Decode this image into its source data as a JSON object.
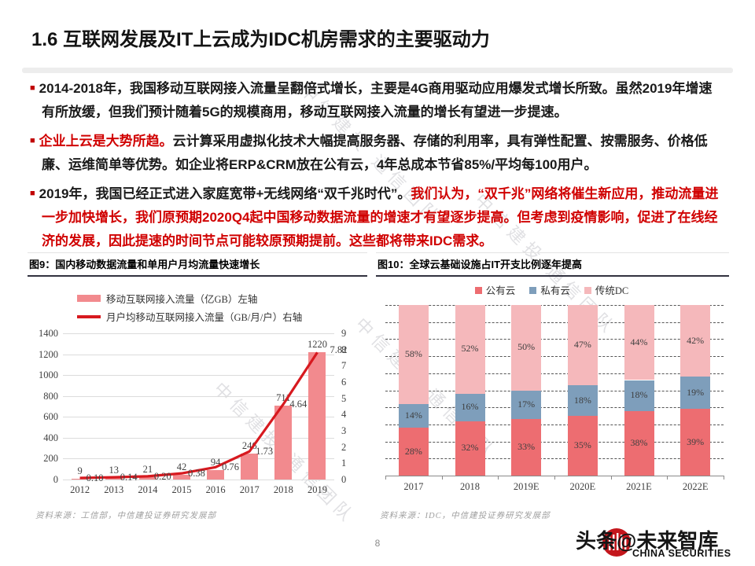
{
  "slide": {
    "title": "1.6 互联网发展及IT上云成为IDC机房需求的主要驱动力",
    "page_number": "8",
    "watermark": "中信建投 通信团队",
    "bullet_marker": "■"
  },
  "bullets": {
    "b1": {
      "text": "2014-2018年，我国移动互联网接入流量呈翻倍式增长，主要是4G商用驱动应用爆发式增长所致。虽然2019年增速有所放缓，但我们预计随着5G的规模商用，移动互联网接入流量的增长有望进一步提速。"
    },
    "b2": {
      "lead": "企业上云是大势所趋。",
      "body": "云计算采用虚拟化技术大幅提高服务器、存储的利用率，具有弹性配置、按需服务、价格低廉、运维简单等优势。如企业将ERP&CRM放在公有云，4年总成本节省85%/平均每100用户。"
    },
    "b3": {
      "lead": "2019年，我国已经正式进入家庭宽带+无线网络“双千兆时代”。",
      "body": "我们认为，“双千兆”网络将催生新应用，推动流量进一步加快增长，我们原预期2020Q4起中国移动数据流量的增速才有望逐步提高。但考虑到疫情影响，促进了在线经济的发展，因此提速的时间节点可能较原预期提前。这些都将带来IDC需求。"
    }
  },
  "chart_data": [
    {
      "id": "fig9",
      "type": "bar",
      "title": "图9：国内移动数据流量和单用户月均流量快速增长",
      "categories": [
        "2012",
        "2013",
        "2014",
        "2015",
        "2016",
        "2017",
        "2018",
        "2019"
      ],
      "series": [
        {
          "name": "移动互联网接入流量（亿GB）左轴",
          "type": "bar",
          "axis": "left",
          "color": "#f28a8e",
          "values": [
            9,
            13,
            21,
            42,
            94,
            246,
            711,
            1220
          ],
          "labels": [
            "9",
            "13",
            "21",
            "42",
            "94",
            "246",
            "711",
            "1220"
          ]
        },
        {
          "name": "月户均移动互联网接入流量（GB/月/户）右轴",
          "type": "line",
          "axis": "right",
          "color": "#d7191f",
          "values": [
            0.1,
            0.14,
            0.2,
            0.38,
            0.76,
            1.73,
            4.64,
            7.82
          ],
          "labels": [
            "0.10",
            "0.14",
            "0.20",
            "0.38",
            "0.76",
            "1.73",
            "4.64",
            "7.82"
          ]
        }
      ],
      "left_axis": {
        "min": 0,
        "max": 1400,
        "step": 200
      },
      "right_axis": {
        "min": 0,
        "max": 9,
        "step": 1
      },
      "grid": "solid-horizontal",
      "legend_position": "top-left",
      "source": "资料来源：工信部，中信建投证券研究发展部"
    },
    {
      "id": "fig10",
      "type": "bar",
      "subtype": "stacked-100",
      "title": "图10：全球云基础设施占IT开支比例逐年提高",
      "categories": [
        "2017",
        "2018",
        "2019E",
        "2020E",
        "2021E",
        "2022E"
      ],
      "series": [
        {
          "name": "公有云",
          "color": "#ed6d71",
          "values": [
            28,
            32,
            33,
            35,
            38,
            39
          ]
        },
        {
          "name": "私有云",
          "color": "#7e9ebb",
          "values": [
            14,
            16,
            17,
            18,
            18,
            19
          ]
        },
        {
          "name": "传统DC",
          "color": "#f5b8bb",
          "values": [
            58,
            52,
            50,
            47,
            44,
            42
          ]
        }
      ],
      "value_suffix": "%",
      "axis": {
        "min": 0,
        "max": 100,
        "gridline_step": 10
      },
      "grid": "dashed-horizontal",
      "legend_position": "top-center",
      "source": "资料来源：IDC，中信建投证券研究发展部"
    }
  ],
  "footer": {
    "brand_watermark": "头条@未来智库",
    "brand_en": "CHINA SECURITIES"
  }
}
